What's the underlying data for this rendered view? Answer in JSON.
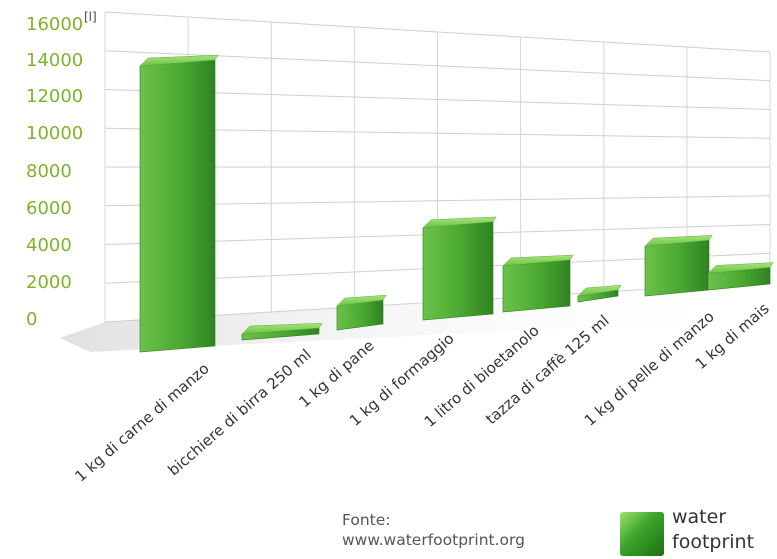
{
  "chart_data": {
    "type": "bar",
    "title": "",
    "unit_label": "[l]",
    "xlabel": "",
    "ylabel": "",
    "ylim": [
      0,
      16000
    ],
    "yticks": [
      0,
      2000,
      4000,
      6000,
      8000,
      10000,
      12000,
      14000,
      16000
    ],
    "grid": true,
    "categories": [
      "1 kg di carne di manzo",
      "bicchiere di birra 250 ml",
      "1 kg di pane",
      "1 kg di formaggio",
      "1 litro di bioetanolo",
      "tazza di caffè 125 ml",
      "1 kg di pelle di manzo",
      "1 kg di mais"
    ],
    "values": [
      15500,
      75,
      1300,
      5000,
      2500,
      140,
      2700,
      900
    ],
    "colors": {
      "bar": "#4aa832",
      "bar_light": "#8ed45e",
      "bar_dark": "#2c7a1c",
      "tick": "#7db52a"
    }
  },
  "source": {
    "label": "Fonte:",
    "url": "www.waterfootprint.org"
  },
  "legend": {
    "line1": "water",
    "line2": "footprint"
  }
}
